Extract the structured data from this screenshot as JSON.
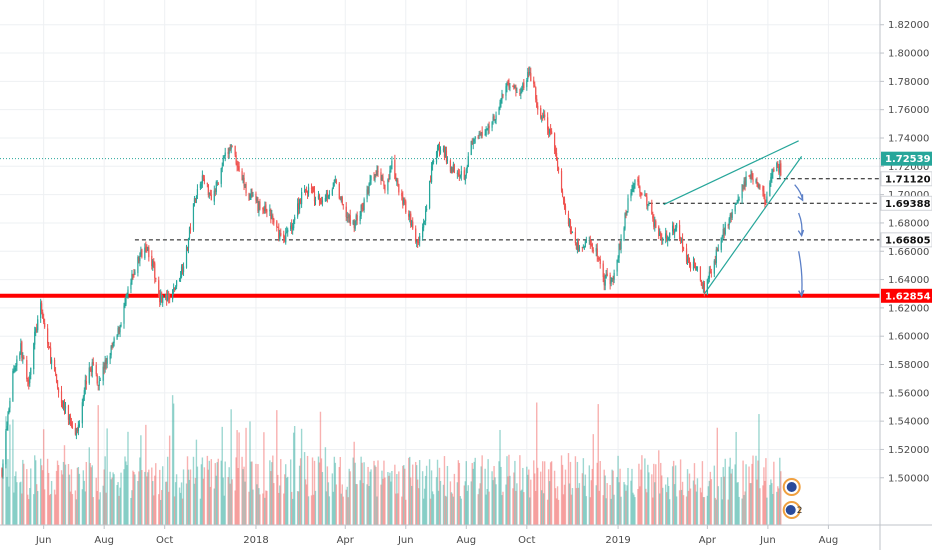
{
  "chart_data": {
    "type": "candlestick",
    "title": "",
    "xlabel": "",
    "ylabel": "",
    "ylim": [
      1.485,
      1.829
    ],
    "x_tick_labels": [
      "Jun",
      "Aug",
      "Oct",
      "2018",
      "Apr",
      "Jun",
      "Aug",
      "Oct",
      "2019",
      "Apr",
      "Jun",
      "Aug"
    ],
    "x_tick_positions": [
      "2017-06-01",
      "2017-08-01",
      "2017-10-01",
      "2018-01-01",
      "2018-04-01",
      "2018-06-01",
      "2018-08-01",
      "2018-10-01",
      "2019-01-01",
      "2019-04-01",
      "2019-06-01",
      "2019-08-01"
    ],
    "x_range": [
      "2017-04-18",
      "2019-09-22"
    ],
    "y_tick_labels": [
      "1.82000",
      "1.80000",
      "1.78000",
      "1.76000",
      "1.74000",
      "1.72000",
      "1.70000",
      "1.68000",
      "1.66000",
      "1.64000",
      "1.62000",
      "1.60000",
      "1.58000",
      "1.56000",
      "1.54000",
      "1.52000",
      "1.50000"
    ],
    "grid": true,
    "colors": {
      "up": "#26a69a",
      "down": "#ef5350",
      "support": "#ff0000",
      "wedge": "#26a69a",
      "arrow": "#5b7fc7",
      "dotted": "#26a69a"
    },
    "price_path": [
      [
        "2017-04-20",
        1.505
      ],
      [
        "2017-05-01",
        1.575
      ],
      [
        "2017-05-09",
        1.592
      ],
      [
        "2017-05-16",
        1.565
      ],
      [
        "2017-05-23",
        1.6
      ],
      [
        "2017-05-29",
        1.62
      ],
      [
        "2017-06-08",
        1.585
      ],
      [
        "2017-06-18",
        1.555
      ],
      [
        "2017-06-28",
        1.54
      ],
      [
        "2017-07-05",
        1.532
      ],
      [
        "2017-07-12",
        1.565
      ],
      [
        "2017-07-20",
        1.58
      ],
      [
        "2017-07-26",
        1.568
      ],
      [
        "2017-08-05",
        1.585
      ],
      [
        "2017-08-14",
        1.6
      ],
      [
        "2017-08-24",
        1.628
      ],
      [
        "2017-09-02",
        1.65
      ],
      [
        "2017-09-12",
        1.666
      ],
      [
        "2017-09-19",
        1.65
      ],
      [
        "2017-09-26",
        1.628
      ],
      [
        "2017-10-05",
        1.625
      ],
      [
        "2017-10-15",
        1.64
      ],
      [
        "2017-10-23",
        1.66
      ],
      [
        "2017-11-01",
        1.7
      ],
      [
        "2017-11-08",
        1.712
      ],
      [
        "2017-11-18",
        1.698
      ],
      [
        "2017-11-24",
        1.71
      ],
      [
        "2017-11-30",
        1.725
      ],
      [
        "2017-12-08",
        1.735
      ],
      [
        "2017-12-16",
        1.715
      ],
      [
        "2017-12-24",
        1.7
      ],
      [
        "2018-01-06",
        1.69
      ],
      [
        "2018-01-14",
        1.688
      ],
      [
        "2018-01-20",
        1.678
      ],
      [
        "2018-01-28",
        1.668
      ],
      [
        "2018-02-06",
        1.678
      ],
      [
        "2018-02-15",
        1.698
      ],
      [
        "2018-02-24",
        1.705
      ],
      [
        "2018-03-04",
        1.695
      ],
      [
        "2018-03-13",
        1.7
      ],
      [
        "2018-03-22",
        1.708
      ],
      [
        "2018-03-30",
        1.69
      ],
      [
        "2018-04-08",
        1.678
      ],
      [
        "2018-04-18",
        1.69
      ],
      [
        "2018-04-28",
        1.712
      ],
      [
        "2018-05-06",
        1.715
      ],
      [
        "2018-05-12",
        1.705
      ],
      [
        "2018-05-18",
        1.72
      ],
      [
        "2018-05-26",
        1.7
      ],
      [
        "2018-06-05",
        1.685
      ],
      [
        "2018-06-12",
        1.665
      ],
      [
        "2018-06-20",
        1.68
      ],
      [
        "2018-06-28",
        1.722
      ],
      [
        "2018-07-06",
        1.735
      ],
      [
        "2018-07-15",
        1.72
      ],
      [
        "2018-07-22",
        1.718
      ],
      [
        "2018-07-30",
        1.714
      ],
      [
        "2018-08-06",
        1.735
      ],
      [
        "2018-08-14",
        1.74
      ],
      [
        "2018-08-23",
        1.748
      ],
      [
        "2018-09-02",
        1.76
      ],
      [
        "2018-09-12",
        1.78
      ],
      [
        "2018-09-18",
        1.775
      ],
      [
        "2018-09-24",
        1.77
      ],
      [
        "2018-10-02",
        1.785
      ],
      [
        "2018-10-07",
        1.782
      ],
      [
        "2018-10-12",
        1.758
      ],
      [
        "2018-10-20",
        1.752
      ],
      [
        "2018-10-30",
        1.73
      ],
      [
        "2018-11-08",
        1.69
      ],
      [
        "2018-11-16",
        1.67
      ],
      [
        "2018-11-24",
        1.66
      ],
      [
        "2018-12-02",
        1.668
      ],
      [
        "2018-12-10",
        1.66
      ],
      [
        "2018-12-18",
        1.64
      ],
      [
        "2018-12-26",
        1.64
      ],
      [
        "2019-01-04",
        1.668
      ],
      [
        "2019-01-12",
        1.7
      ],
      [
        "2019-01-20",
        1.71
      ],
      [
        "2019-01-28",
        1.698
      ],
      [
        "2019-02-04",
        1.684
      ],
      [
        "2019-02-12",
        1.672
      ],
      [
        "2019-02-20",
        1.668
      ],
      [
        "2019-03-01",
        1.68
      ],
      [
        "2019-03-08",
        1.66
      ],
      [
        "2019-03-16",
        1.65
      ],
      [
        "2019-03-24",
        1.645
      ],
      [
        "2019-03-29",
        1.632
      ],
      [
        "2019-04-06",
        1.648
      ],
      [
        "2019-04-14",
        1.668
      ],
      [
        "2019-04-22",
        1.682
      ],
      [
        "2019-05-01",
        1.698
      ],
      [
        "2019-05-08",
        1.708
      ],
      [
        "2019-05-16",
        1.712
      ],
      [
        "2019-05-24",
        1.705
      ],
      [
        "2019-05-30",
        1.695
      ],
      [
        "2019-06-04",
        1.712
      ],
      [
        "2019-06-10",
        1.72
      ],
      [
        "2019-06-14",
        1.717
      ]
    ],
    "volume_note": "",
    "overlays": {
      "support_level": {
        "price": 1.62854,
        "label": "1.62854"
      },
      "horizontal_levels": [
        {
          "price": 1.66805,
          "label": "1.66805",
          "from": "2017-09-01"
        },
        {
          "price": 1.69388,
          "label": "1.69388",
          "from": "2019-02-01"
        },
        {
          "price": 1.7112,
          "label": "1.71120",
          "from": "2019-06-10"
        }
      ],
      "current_price": {
        "price": 1.72539,
        "label": "1.72539"
      },
      "wedge_upper": [
        [
          "2019-02-16",
          1.693
        ],
        [
          "2019-07-02",
          1.738
        ]
      ],
      "wedge_lower": [
        [
          "2019-03-29",
          1.63
        ],
        [
          "2019-07-05",
          1.727
        ]
      ],
      "arrows": [
        {
          "from": [
            "2019-06-28",
            1.707
          ],
          "to": [
            "2019-07-06",
            1.696
          ]
        },
        {
          "from": [
            "2019-07-02",
            1.687
          ],
          "to": [
            "2019-07-05",
            1.671
          ]
        },
        {
          "from": [
            "2019-07-02",
            1.66
          ],
          "to": [
            "2019-07-05",
            1.6285
          ]
        }
      ],
      "flag_badges": [
        "2"
      ]
    }
  }
}
